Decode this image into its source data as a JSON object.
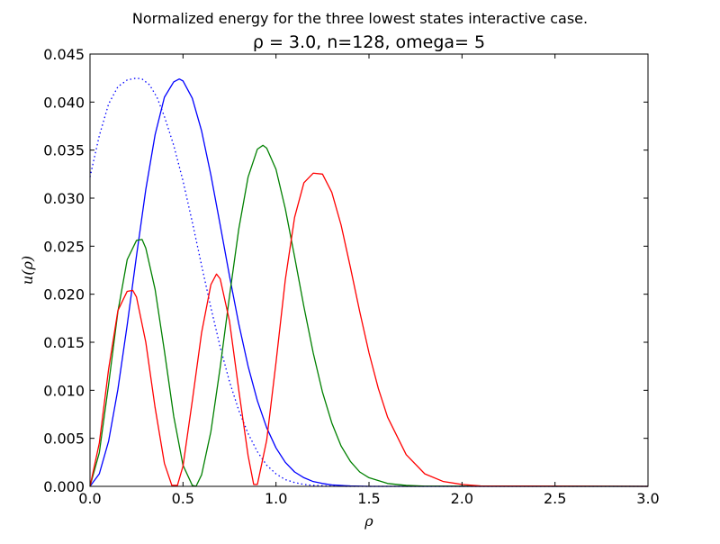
{
  "figure": {
    "suptitle": "Normalized energy for the three lowest states interactive case.",
    "title": "ρ = 3.0, n=128, omega= 5"
  },
  "chart_data": {
    "type": "line",
    "title": "ρ = 3.0, n=128, omega= 5",
    "xlabel": "ρ",
    "ylabel": "u(ρ)",
    "xlim": [
      0.0,
      3.0
    ],
    "ylim": [
      0.0,
      0.045
    ],
    "xticks": [
      0.0,
      0.5,
      1.0,
      1.5,
      2.0,
      2.5,
      3.0
    ],
    "xtick_labels": [
      "0.0",
      "0.5",
      "1.0",
      "1.5",
      "2.0",
      "2.5",
      "3.0"
    ],
    "yticks": [
      0.0,
      0.005,
      0.01,
      0.015,
      0.02,
      0.025,
      0.03,
      0.035,
      0.04,
      0.045
    ],
    "ytick_labels": [
      "0.000",
      "0.005",
      "0.010",
      "0.015",
      "0.020",
      "0.025",
      "0.030",
      "0.035",
      "0.040",
      "0.045"
    ],
    "grid": false,
    "legend": "none",
    "series": [
      {
        "color": "#0000ff",
        "linestyle": "dotted",
        "x": [
          0.0,
          0.05,
          0.1,
          0.15,
          0.2,
          0.25,
          0.28,
          0.32,
          0.36,
          0.4,
          0.45,
          0.5,
          0.55,
          0.6,
          0.65,
          0.7,
          0.75,
          0.8,
          0.85,
          0.9,
          0.95,
          1.0,
          1.05,
          1.1,
          1.15,
          1.2,
          1.3,
          1.4,
          1.6,
          3.0
        ],
        "y": [
          0.0322,
          0.0365,
          0.0398,
          0.0416,
          0.0423,
          0.0425,
          0.0424,
          0.0418,
          0.0405,
          0.0385,
          0.0355,
          0.0318,
          0.0275,
          0.023,
          0.0186,
          0.0145,
          0.0109,
          0.0079,
          0.0055,
          0.0036,
          0.0022,
          0.0013,
          0.0007,
          0.0004,
          0.0002,
          0.0001,
          3e-05,
          0.0,
          0.0,
          0.0
        ]
      },
      {
        "color": "#0000ff",
        "linestyle": "solid",
        "x": [
          0.0,
          0.05,
          0.1,
          0.15,
          0.2,
          0.25,
          0.3,
          0.35,
          0.4,
          0.45,
          0.48,
          0.5,
          0.55,
          0.6,
          0.65,
          0.7,
          0.75,
          0.8,
          0.85,
          0.9,
          0.95,
          1.0,
          1.05,
          1.1,
          1.15,
          1.2,
          1.25,
          1.3,
          1.4,
          1.5,
          3.0
        ],
        "y": [
          0.0,
          0.0013,
          0.0047,
          0.0101,
          0.0168,
          0.024,
          0.0309,
          0.0366,
          0.0405,
          0.0421,
          0.0424,
          0.0422,
          0.0404,
          0.037,
          0.0324,
          0.0272,
          0.0219,
          0.0169,
          0.0125,
          0.0089,
          0.0061,
          0.004,
          0.0025,
          0.0015,
          0.0009,
          0.0005,
          0.0003,
          0.00015,
          4e-05,
          0.0,
          0.0
        ]
      },
      {
        "color": "#008000",
        "linestyle": "solid",
        "x": [
          0.0,
          0.05,
          0.1,
          0.15,
          0.2,
          0.25,
          0.28,
          0.3,
          0.35,
          0.4,
          0.45,
          0.5,
          0.55,
          0.57,
          0.6,
          0.65,
          0.7,
          0.75,
          0.8,
          0.85,
          0.9,
          0.93,
          0.95,
          1.0,
          1.05,
          1.1,
          1.15,
          1.2,
          1.25,
          1.3,
          1.35,
          1.4,
          1.45,
          1.5,
          1.6,
          1.7,
          1.8,
          3.0
        ],
        "y": [
          0.0,
          0.0035,
          0.0106,
          0.0182,
          0.0236,
          0.0256,
          0.0257,
          0.0248,
          0.0205,
          0.0141,
          0.0073,
          0.0022,
          0.0001,
          0.0,
          0.0012,
          0.0057,
          0.0124,
          0.0198,
          0.0268,
          0.0322,
          0.0351,
          0.0355,
          0.0352,
          0.033,
          0.0289,
          0.0239,
          0.0187,
          0.0139,
          0.0098,
          0.0066,
          0.0042,
          0.0026,
          0.0015,
          0.0009,
          0.0003,
          0.0001,
          2e-05,
          0.0
        ]
      },
      {
        "color": "#ff0000",
        "linestyle": "solid",
        "x": [
          0.0,
          0.05,
          0.1,
          0.15,
          0.2,
          0.23,
          0.25,
          0.3,
          0.35,
          0.4,
          0.44,
          0.47,
          0.5,
          0.55,
          0.6,
          0.65,
          0.68,
          0.7,
          0.75,
          0.8,
          0.85,
          0.88,
          0.9,
          0.95,
          1.0,
          1.05,
          1.1,
          1.15,
          1.2,
          1.25,
          1.3,
          1.35,
          1.4,
          1.45,
          1.5,
          1.55,
          1.6,
          1.7,
          1.8,
          1.9,
          2.0,
          2.1,
          3.0
        ],
        "y": [
          0.0,
          0.0045,
          0.0122,
          0.0183,
          0.0203,
          0.0204,
          0.0197,
          0.015,
          0.0082,
          0.0024,
          0.0001,
          0.0001,
          0.0021,
          0.0089,
          0.016,
          0.021,
          0.0221,
          0.0216,
          0.0172,
          0.01,
          0.0032,
          0.0002,
          0.0002,
          0.0048,
          0.0129,
          0.0215,
          0.028,
          0.0316,
          0.0326,
          0.0325,
          0.0306,
          0.0272,
          0.0228,
          0.0182,
          0.0139,
          0.0102,
          0.0072,
          0.0033,
          0.0013,
          0.0005,
          0.0002,
          5e-05,
          0.0
        ]
      }
    ]
  }
}
